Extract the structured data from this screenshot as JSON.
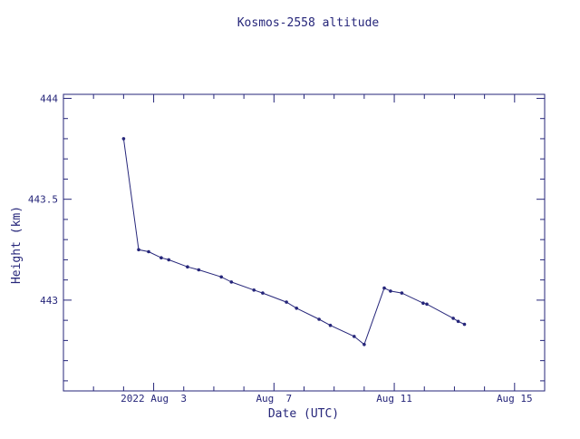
{
  "chart_data": {
    "type": "line",
    "title": "Kosmos-2558 altitude",
    "xlabel": "Date (UTC)",
    "ylabel": "Height (km)",
    "x_tick_labels": [
      "2022 Aug  3",
      "Aug  7",
      "Aug 11",
      "Aug 15"
    ],
    "x_tick_values": [
      "2022-08-03",
      "2022-08-07",
      "2022-08-11",
      "2022-08-15"
    ],
    "y_tick_labels": [
      "443",
      "443.5",
      "444"
    ],
    "y_tick_values": [
      443,
      443.5,
      444
    ],
    "xlim": [
      "2021-07-31T12:00",
      "2022-08-16T12:00"
    ],
    "ylim": [
      442.55,
      444.02
    ],
    "grid": false,
    "series": [
      {
        "x": [
          "2022-08-02T00:00",
          "2022-08-02T12:00",
          "2022-08-02T20:00",
          "2022-08-03T06:00",
          "2022-08-03T12:00",
          "2022-08-04T03:00",
          "2022-08-04T12:00",
          "2022-08-05T06:00",
          "2022-08-05T14:00",
          "2022-08-06T08:00",
          "2022-08-06T15:00",
          "2022-08-07T10:00",
          "2022-08-07T18:00",
          "2022-08-08T12:00",
          "2022-08-08T21:00",
          "2022-08-09T16:00",
          "2022-08-10T00:00",
          "2022-08-10T16:00",
          "2022-08-10T21:00",
          "2022-08-11T06:00",
          "2022-08-11T23:00",
          "2022-08-12T02:00",
          "2022-08-12T23:00",
          "2022-08-13T03:00",
          "2022-08-13T08:00"
        ],
        "y": [
          443.8,
          443.25,
          443.24,
          443.21,
          443.2,
          443.165,
          443.15,
          443.115,
          443.09,
          443.05,
          443.035,
          442.99,
          442.96,
          442.905,
          442.875,
          442.82,
          442.78,
          443.06,
          443.045,
          443.035,
          442.985,
          442.98,
          442.91,
          442.895,
          442.88
        ]
      }
    ]
  }
}
